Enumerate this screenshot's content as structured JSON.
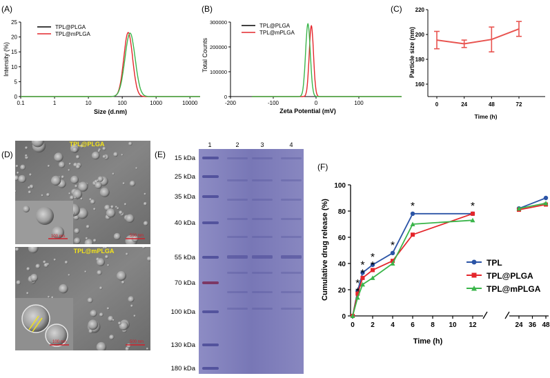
{
  "panels": {
    "A": "(A)",
    "B": "(B)",
    "C": "(C)",
    "D": "(D)",
    "E": "(E)",
    "F": "(F)"
  },
  "colors": {
    "black": "#000000",
    "red": "#e4262b",
    "blue": "#2b54a6",
    "green": "#3ab54a",
    "salmon": "#e8534f",
    "gel": "#7a78b8"
  },
  "chart_data": [
    {
      "id": "A",
      "type": "line",
      "xscale": "log",
      "xlabel": "Size (d.nm)",
      "ylabel": "Intensity (%)",
      "xlim": [
        0.1,
        20000
      ],
      "ylim": [
        0,
        25
      ],
      "xticks": [
        "0.1",
        "1",
        "10",
        "100",
        "1000",
        "10000"
      ],
      "yticks": [
        "0",
        "5",
        "10",
        "15",
        "20",
        "25"
      ],
      "legend": [
        "TPL@PLGA",
        "TPL@mPLGA"
      ],
      "series": [
        {
          "name": "TPL@PLGA",
          "center": 150,
          "peak": 21.5,
          "width": 0.13
        },
        {
          "name": "TPL@mPLGA",
          "center": 170,
          "peak": 21.3,
          "width": 0.15
        }
      ]
    },
    {
      "id": "B",
      "type": "line",
      "xlabel": "Zeta Potential (mV)",
      "ylabel": "Total Counts",
      "xlim": [
        -200,
        200
      ],
      "ylim": [
        0,
        300000
      ],
      "xticks": [
        "-200",
        "-100",
        "0",
        "100"
      ],
      "yticks": [
        "0",
        "100000",
        "200000",
        "300000"
      ],
      "legend": [
        "TPL@PLGA",
        "TPL@mPLGA"
      ],
      "series": [
        {
          "name": "TPL@PLGA",
          "center": -11,
          "peak": 285000,
          "width": 5
        },
        {
          "name": "TPL@mPLGA",
          "center": -19,
          "peak": 293000,
          "width": 5.5
        }
      ]
    },
    {
      "id": "C",
      "type": "line",
      "xlabel": "Time (h)",
      "ylabel": "Particle size (nm)",
      "ylim": [
        150,
        220
      ],
      "xticks": [
        "0",
        "24",
        "48",
        "72"
      ],
      "yticks": [
        "160",
        "180",
        "200",
        "220"
      ],
      "x": [
        0,
        24,
        48,
        72
      ],
      "values": [
        195.5,
        192.5,
        196,
        204.5
      ],
      "errors": [
        7,
        3,
        10,
        6
      ]
    },
    {
      "id": "F",
      "type": "line",
      "xlabel": "Time (h)",
      "ylabel": "Cumulative drug release (%)",
      "ylim": [
        0,
        100
      ],
      "xticks": [
        "0",
        "2",
        "4",
        "6",
        "8",
        "10",
        "12",
        "24",
        "36",
        "48"
      ],
      "yticks": [
        "0",
        "20",
        "40",
        "60",
        "80",
        "100"
      ],
      "x": [
        0,
        0.5,
        1,
        2,
        4,
        6,
        12,
        24,
        48
      ],
      "series": [
        {
          "name": "TPL",
          "values": [
            0,
            19,
            33,
            39,
            48,
            78,
            78,
            82,
            90
          ]
        },
        {
          "name": "TPL@PLGA",
          "values": [
            0,
            17,
            29,
            35,
            42,
            62,
            78,
            81,
            85
          ]
        },
        {
          "name": "TPL@mPLGA",
          "values": [
            0,
            14,
            24,
            29,
            40,
            70,
            73,
            82,
            86
          ]
        }
      ],
      "significance": [
        0.5,
        1,
        2,
        4,
        6,
        12
      ],
      "star": "*"
    }
  ],
  "tem": {
    "top_label": "TPL@PLGA",
    "bottom_label": "TPL@mPLGA",
    "scale_100": "100 nm",
    "scale_500": "500 nm"
  },
  "gel": {
    "lanes": [
      "1",
      "2",
      "3",
      "4"
    ],
    "markers": [
      "15 kDa",
      "25 kDa",
      "35 kDa",
      "40 kDa",
      "55 kDa",
      "70 kDa",
      "100 kDa",
      "130 kDa",
      "180 kDa"
    ]
  }
}
